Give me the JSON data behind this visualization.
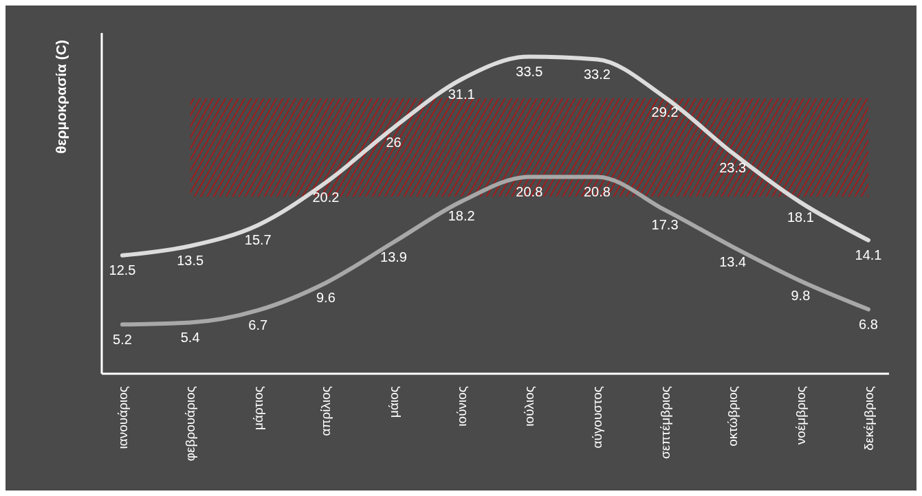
{
  "chart_data": {
    "type": "line",
    "ylabel": "θερμοκρασία (C)",
    "categories": [
      "ιανουάριος",
      "φεβρουάριος",
      "μάρτιος",
      "απρίλιος",
      "μάιος",
      "ιούνιος",
      "ιούλιος",
      "αύγουστος",
      "σεπτέμβριος",
      "οκτώβριος",
      "νοέμβριος",
      "δεκέμβριος"
    ],
    "series": [
      {
        "color": "#dcdcdc",
        "values": [
          12.5,
          13.5,
          15.7,
          20.2,
          26,
          31.1,
          33.5,
          33.2,
          29.2,
          23.3,
          18.1,
          14.1
        ]
      },
      {
        "color": "#a8a8a8",
        "values": [
          5.2,
          5.4,
          6.7,
          9.6,
          13.9,
          18.2,
          20.8,
          20.8,
          17.3,
          13.4,
          9.8,
          6.8
        ]
      }
    ],
    "ylim": [
      0,
      36
    ],
    "tick_labels": "x",
    "data_labels": true,
    "grid": false,
    "legend": false,
    "marker": "none",
    "line_style": "solid",
    "bands": [
      {
        "axis": "y",
        "from": 18.7,
        "to": 29.1,
        "color": "#a01c1c"
      }
    ]
  }
}
